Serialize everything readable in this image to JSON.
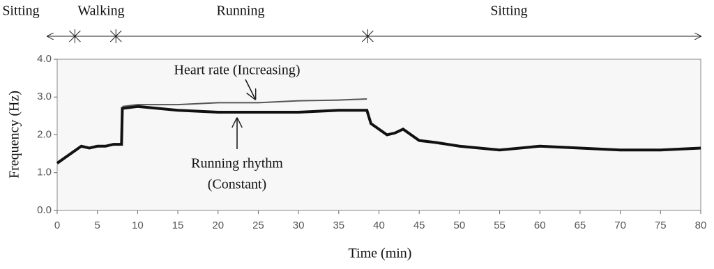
{
  "chart_data": {
    "type": "line",
    "xlabel": "Time (min)",
    "ylabel": "Frequency (Hz)",
    "phases": [
      "Sitting",
      "Walking",
      "Running",
      "Sitting"
    ],
    "phase_boundaries": [
      2.2,
      7.3,
      38.6
    ],
    "annotations": [
      "Heart rate (Increasing)",
      "Running rhythm",
      "(Constant)"
    ],
    "x": [
      0,
      1,
      2,
      3,
      4,
      5,
      6,
      7,
      8,
      8.1,
      10,
      15,
      20,
      25,
      30,
      35,
      38.5,
      39,
      40,
      41,
      42,
      43,
      44,
      45,
      47,
      50,
      55,
      60,
      65,
      70,
      75,
      80
    ],
    "series": [
      {
        "color": "#111111",
        "values": [
          1.25,
          1.4,
          1.55,
          1.7,
          1.65,
          1.7,
          1.7,
          1.75,
          1.75,
          2.7,
          2.75,
          2.65,
          2.6,
          2.6,
          2.6,
          2.65,
          2.65,
          2.3,
          2.15,
          2.0,
          2.05,
          2.15,
          2.0,
          1.85,
          1.8,
          1.7,
          1.6,
          1.7,
          1.65,
          1.6,
          1.6,
          1.65
        ]
      },
      {
        "color": "#555555",
        "values": [
          null,
          null,
          null,
          null,
          null,
          null,
          null,
          null,
          null,
          2.75,
          2.8,
          2.8,
          2.85,
          2.85,
          2.9,
          2.92,
          2.95,
          null,
          null,
          null,
          null,
          null,
          null,
          null,
          null,
          null,
          null,
          null,
          null,
          null,
          null,
          null
        ]
      }
    ],
    "xlim": [
      0,
      80
    ],
    "ylim": [
      0,
      4
    ],
    "xticks": [
      0,
      5,
      10,
      15,
      20,
      25,
      30,
      35,
      40,
      45,
      50,
      55,
      60,
      65,
      70,
      75,
      80
    ],
    "yticks": [
      {
        "value": 0,
        "label": "0.0"
      },
      {
        "value": 1,
        "label": "1.0"
      },
      {
        "value": 2,
        "label": "2.0"
      },
      {
        "value": 3,
        "label": "3.0"
      },
      {
        "value": 4,
        "label": "4.0"
      }
    ]
  }
}
